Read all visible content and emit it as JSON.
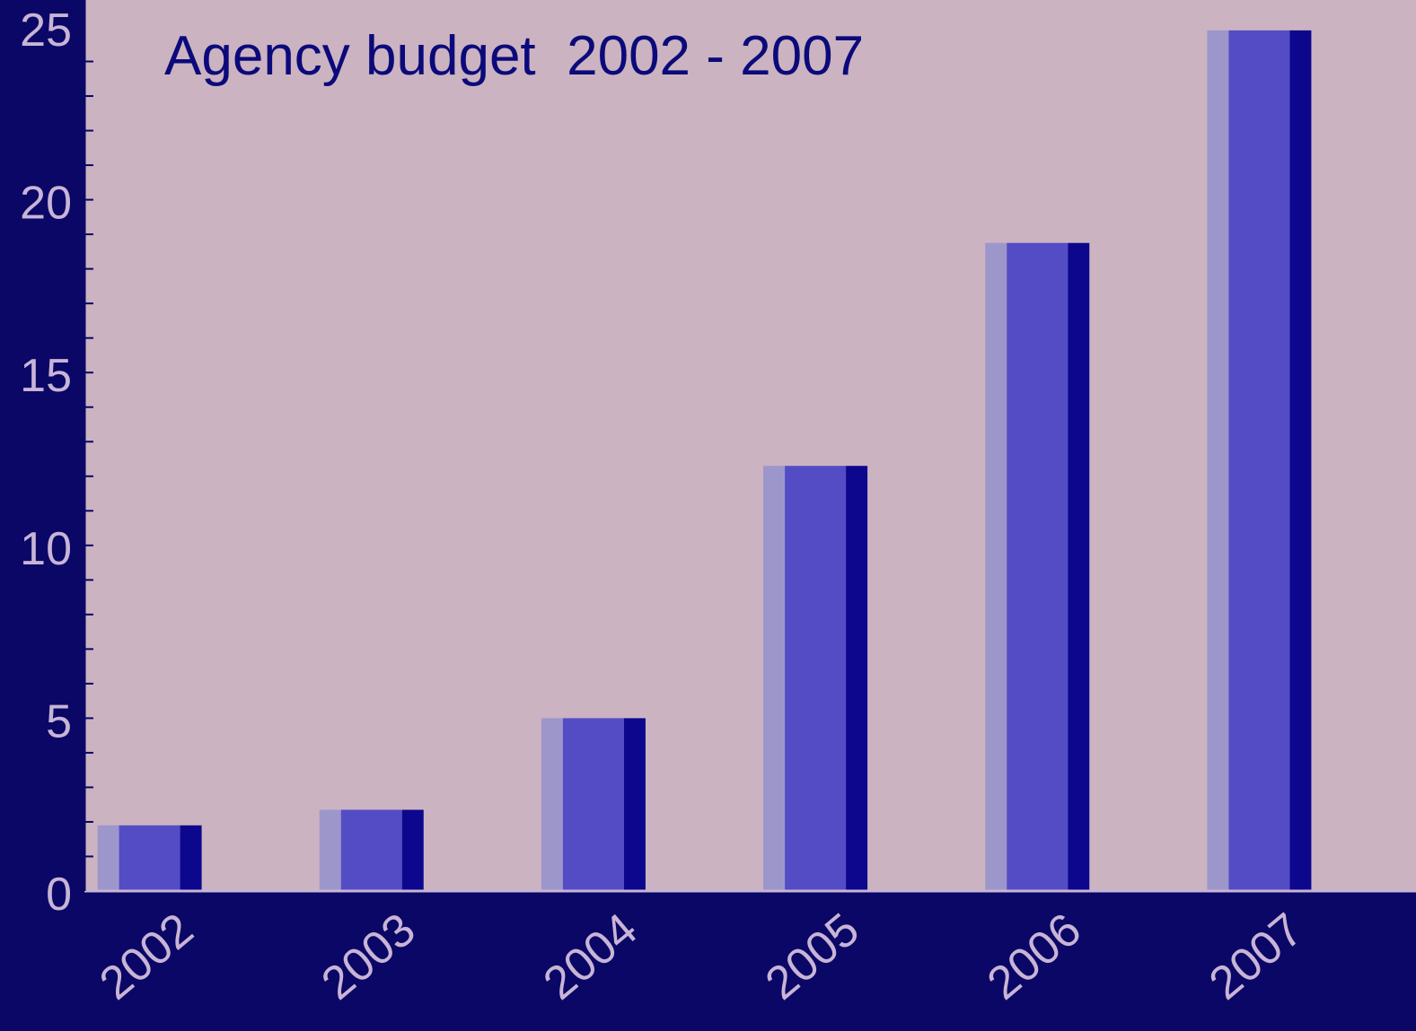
{
  "colors": {
    "frame": "#0a0766",
    "plot_bg": "#cbb3c2",
    "bar_front": "#534cc4",
    "bar_left": "#9c96cb",
    "bar_right": "#0c078c",
    "title": "#0c0a7a",
    "tick_label": "#c8b4d6"
  },
  "chart_data": {
    "type": "bar",
    "title": "Agency budget  2002 - 2007",
    "xlabel": "",
    "ylabel": "",
    "categories": [
      "2002",
      "2003",
      "2004",
      "2005",
      "2006",
      "2007"
    ],
    "values": [
      1.9,
      2.35,
      5.0,
      12.3,
      18.75,
      24.9
    ],
    "ylim": [
      0,
      25
    ],
    "y_ticks": [
      0,
      5,
      10,
      15,
      20,
      25
    ],
    "y_tick_labels": [
      "0",
      "5",
      "10",
      "15",
      "20",
      "25"
    ],
    "y_minor_step": 1,
    "grid": false,
    "legend": "none",
    "x_tick_rotation": "diagonal"
  }
}
